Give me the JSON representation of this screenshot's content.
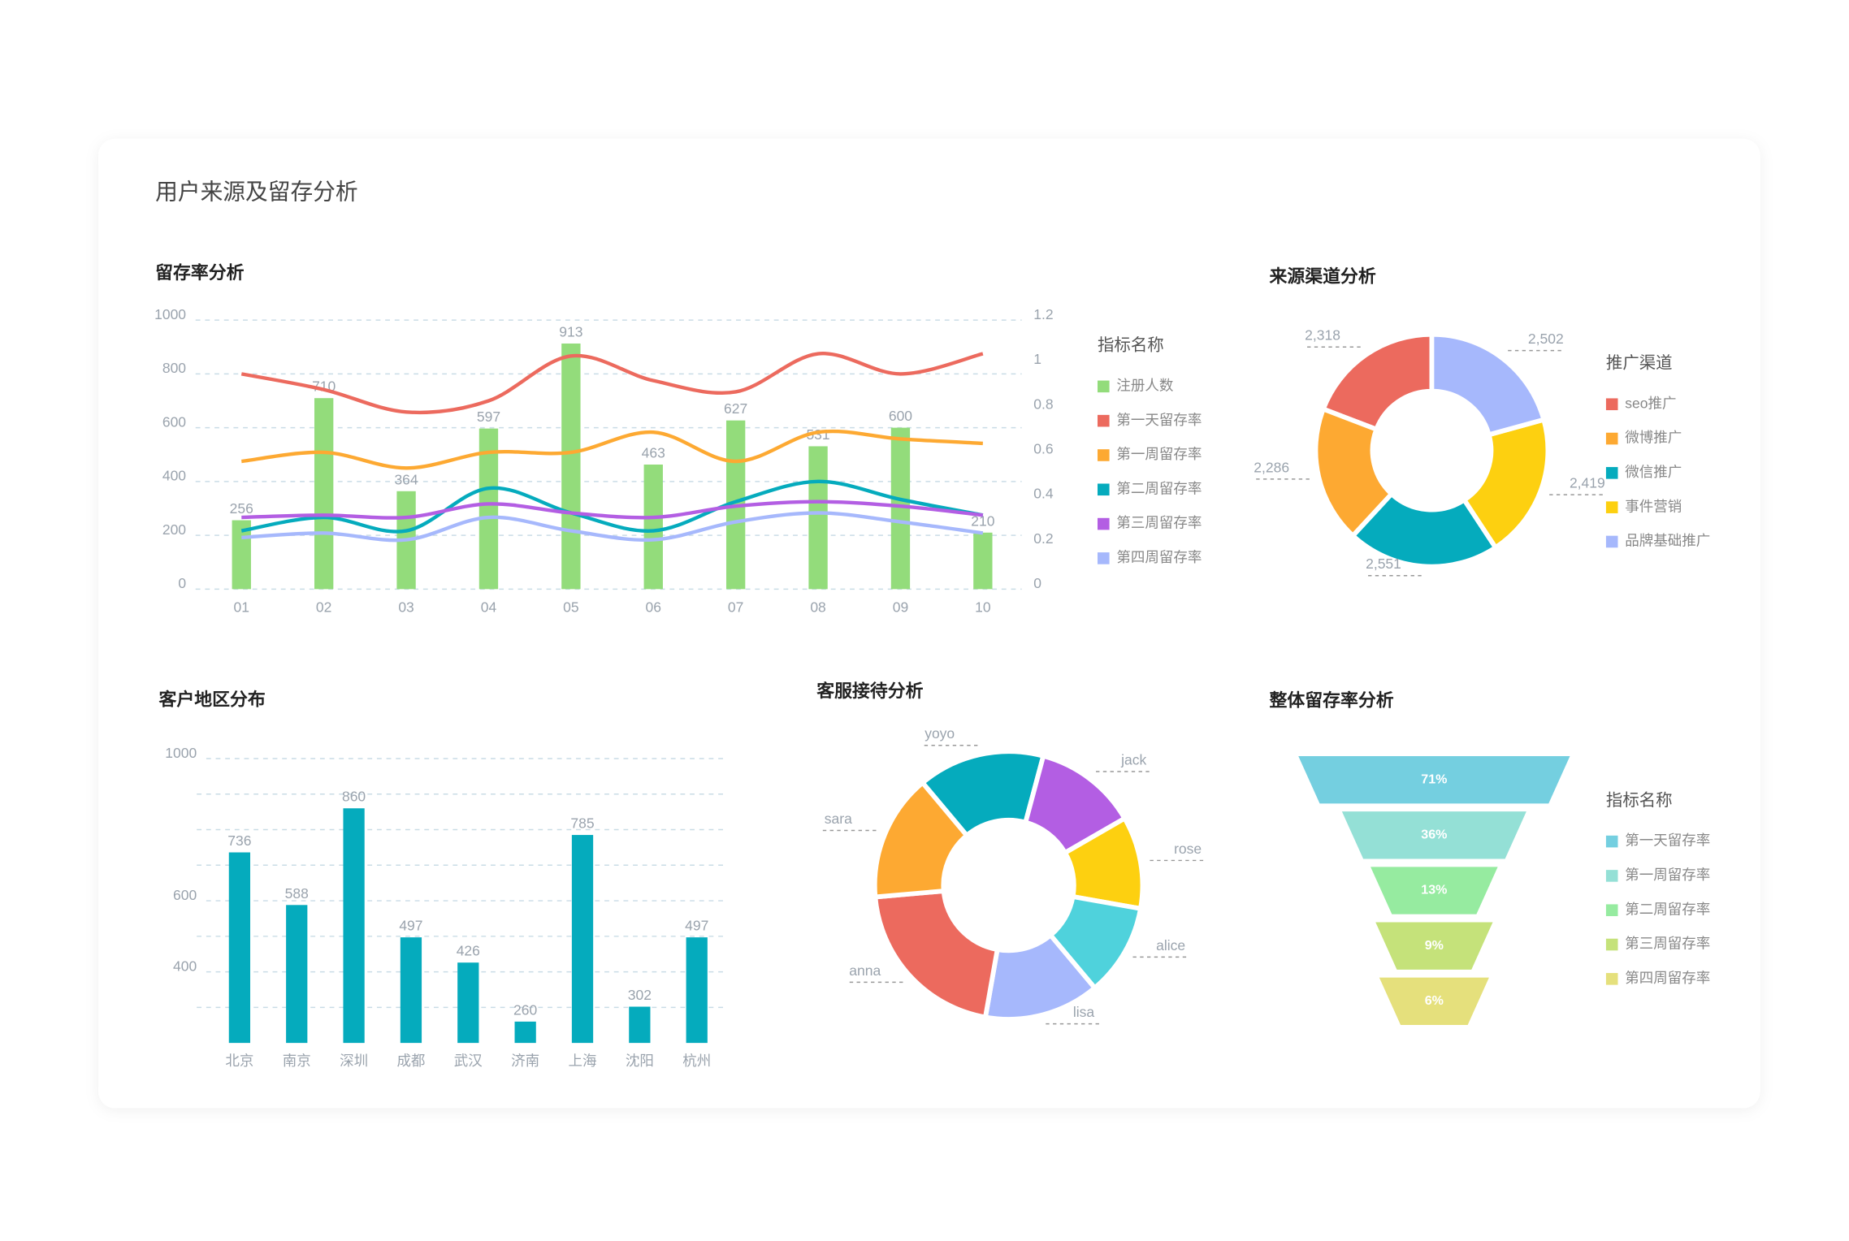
{
  "title": "用户来源及留存分析",
  "chart_data": [
    {
      "type": "bar",
      "title": "留存率分析",
      "legend_title": "指标名称",
      "categories": [
        "01",
        "02",
        "03",
        "04",
        "05",
        "06",
        "07",
        "08",
        "09",
        "10"
      ],
      "series": [
        {
          "name": "注册人数",
          "type": "bar",
          "color": "#93dc7b",
          "values": [
            256,
            710,
            364,
            597,
            913,
            463,
            627,
            531,
            600,
            210
          ]
        },
        {
          "name": "第一天留存率",
          "type": "line",
          "axis": "y2",
          "color": "#ec6a5e",
          "values": [
            0.96,
            0.89,
            0.79,
            0.84,
            1.04,
            0.93,
            0.88,
            1.05,
            0.96,
            1.05
          ]
        },
        {
          "name": "第一周留存率",
          "type": "line",
          "axis": "y2",
          "color": "#fda932",
          "values": [
            0.57,
            0.61,
            0.54,
            0.61,
            0.61,
            0.7,
            0.57,
            0.7,
            0.67,
            0.65
          ]
        },
        {
          "name": "第二周留存率",
          "type": "line",
          "axis": "y2",
          "color": "#05abbd",
          "values": [
            0.26,
            0.32,
            0.26,
            0.45,
            0.34,
            0.26,
            0.39,
            0.48,
            0.4,
            0.33
          ]
        },
        {
          "name": "第三周留存率",
          "type": "line",
          "axis": "y2",
          "color": "#b35ee3",
          "values": [
            0.32,
            0.33,
            0.32,
            0.38,
            0.34,
            0.32,
            0.37,
            0.39,
            0.37,
            0.33
          ]
        },
        {
          "name": "第四周留存率",
          "type": "line",
          "axis": "y2",
          "color": "#a6b8fc",
          "values": [
            0.23,
            0.25,
            0.22,
            0.32,
            0.26,
            0.22,
            0.3,
            0.34,
            0.3,
            0.25
          ]
        }
      ],
      "ylim": [
        0,
        1000
      ],
      "yticks": [
        0,
        200,
        400,
        600,
        800,
        1000
      ],
      "y2lim": [
        0,
        1.2
      ],
      "y2ticks": [
        0,
        0.2,
        0.4,
        0.6,
        0.8,
        1,
        1.2
      ],
      "grid": true
    },
    {
      "type": "pie",
      "title": "来源渠道分析",
      "legend_title": "推广渠道",
      "donut": true,
      "categories": [
        "seo推广",
        "微博推广",
        "微信推广",
        "事件营销",
        "品牌基础推广"
      ],
      "values": [
        2318,
        2286,
        2551,
        2419,
        2502
      ],
      "value_labels": [
        "2,318",
        "2,286",
        "2,551",
        "2,419",
        "2,502"
      ],
      "colors": [
        "#ec6a5e",
        "#fda932",
        "#05abbd",
        "#fdd010",
        "#a6b8fc"
      ]
    },
    {
      "type": "bar",
      "title": "客户地区分布",
      "categories": [
        "北京",
        "南京",
        "深圳",
        "成都",
        "武汉",
        "济南",
        "上海",
        "沈阳",
        "杭州"
      ],
      "values": [
        736,
        588,
        860,
        497,
        426,
        260,
        785,
        302,
        497
      ],
      "color": "#05abbd",
      "ylim": [
        200,
        1000
      ],
      "yticks": [
        400,
        600,
        1000
      ],
      "minor_yticks": [
        300,
        500,
        700,
        800,
        900
      ],
      "grid": true
    },
    {
      "type": "pie",
      "title": "客服接待分析",
      "donut": true,
      "categories": [
        "yoyo",
        "jack",
        "rose",
        "alice",
        "lisa",
        "anna",
        "sara"
      ],
      "values": [
        55,
        45,
        40,
        40,
        50,
        75,
        55
      ],
      "colors": [
        "#05abbd",
        "#b35ee3",
        "#fdd010",
        "#4fd2dc",
        "#a6b8fc",
        "#ec6a5e",
        "#fda932"
      ]
    },
    {
      "type": "funnel",
      "title": "整体留存率分析",
      "legend_title": "指标名称",
      "categories": [
        "第一天留存率",
        "第一周留存率",
        "第二周留存率",
        "第三周留存率",
        "第四周留存率"
      ],
      "values": [
        71,
        36,
        13,
        9,
        6
      ],
      "value_labels": [
        "71%",
        "36%",
        "13%",
        "9%",
        "6%"
      ],
      "colors": [
        "#74cfe0",
        "#94e0d6",
        "#96eba0",
        "#c5e27a",
        "#e5e07c"
      ]
    }
  ]
}
